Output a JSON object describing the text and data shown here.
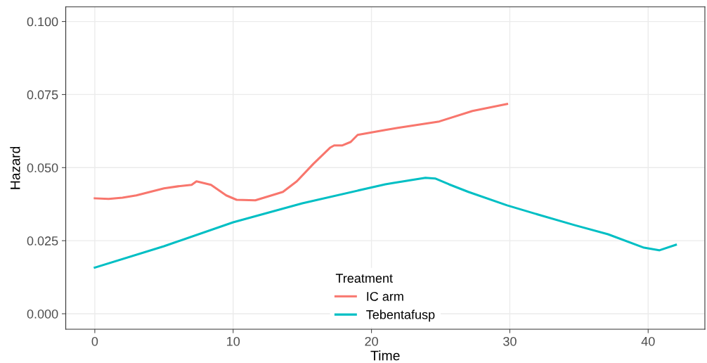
{
  "chart_data": {
    "type": "line",
    "xlabel": "Time",
    "ylabel": "Hazard",
    "legend_title": "Treatment",
    "xlim": [
      -2.1,
      44.1
    ],
    "xticks": [
      0,
      10,
      20,
      30,
      40
    ],
    "ylim": [
      -0.0053,
      0.105
    ],
    "yticks": [
      {
        "value": 0,
        "label": "0.000"
      },
      {
        "value": 0.025,
        "label": "0.025"
      },
      {
        "value": 0.05,
        "label": "0.050"
      },
      {
        "value": 0.075,
        "label": "0.075"
      },
      {
        "value": 0.1,
        "label": "0.100"
      }
    ],
    "grid": true,
    "legend": "bottom",
    "marker": "none",
    "line_style": "solid",
    "series": [
      {
        "name": "IC arm",
        "color": "#f8766d",
        "x": [
          0,
          1,
          2,
          3,
          4,
          5,
          6,
          7,
          7.35,
          8.4,
          9.5,
          10.25,
          11.6,
          12.9,
          13.6,
          14.6,
          15.8,
          17.0,
          17.3,
          17.9,
          18.5,
          19.0,
          21.0,
          21.9,
          24.9,
          27.3,
          29.8
        ],
        "values": [
          0.0395,
          0.0393,
          0.0397,
          0.0405,
          0.0417,
          0.0429,
          0.0436,
          0.0441,
          0.0453,
          0.0441,
          0.0405,
          0.039,
          0.0388,
          0.0407,
          0.0417,
          0.0453,
          0.0513,
          0.0568,
          0.0576,
          0.0576,
          0.0588,
          0.0612,
          0.0629,
          0.0636,
          0.0658,
          0.0694,
          0.0718
        ]
      },
      {
        "name": "Tebentafusp",
        "color": "#00bfc4",
        "x": [
          0,
          5.0,
          10.0,
          15.0,
          21.0,
          21.6,
          23.9,
          24.6,
          25.6,
          27.0,
          29.8,
          32.0,
          34.7,
          37.1,
          39.7,
          40.8,
          42.0
        ],
        "values": [
          0.0158,
          0.0231,
          0.0313,
          0.0378,
          0.0443,
          0.0448,
          0.0465,
          0.0463,
          0.0443,
          0.0417,
          0.0371,
          0.034,
          0.0303,
          0.0272,
          0.0226,
          0.0217,
          0.0236
        ]
      }
    ]
  }
}
